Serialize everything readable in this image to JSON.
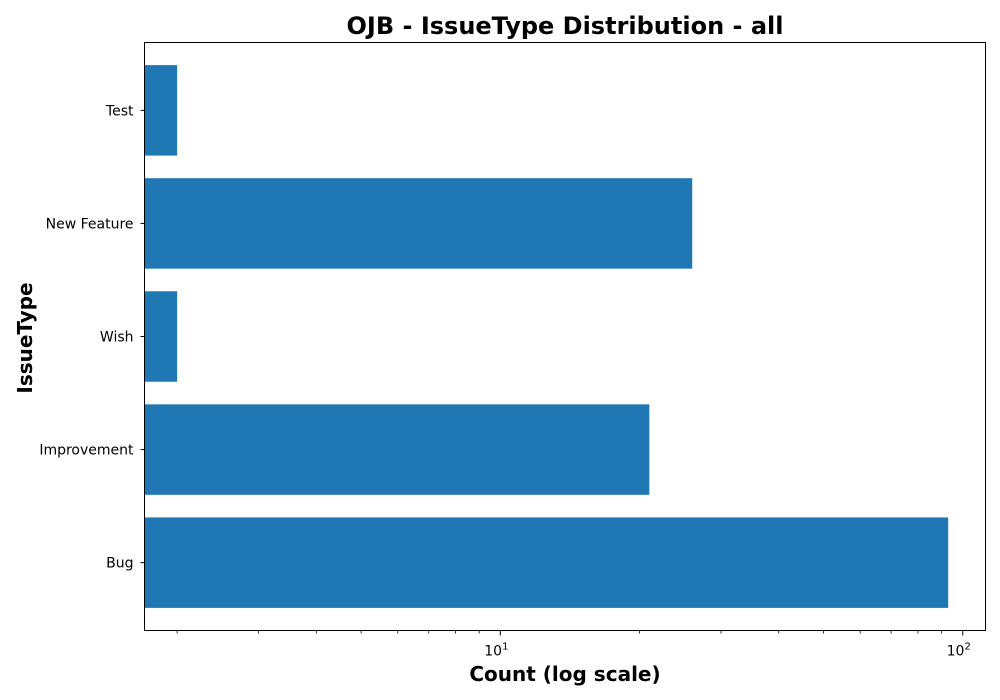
{
  "chart_data": {
    "type": "bar",
    "orientation": "horizontal",
    "title": "OJB - IssueType Distribution - all",
    "xlabel": "Count (log scale)",
    "ylabel": "IssueType",
    "x_scale": "log",
    "xlim": [
      1.7,
      112
    ],
    "categories": [
      "Bug",
      "Improvement",
      "Wish",
      "New Feature",
      "Test"
    ],
    "values": [
      93,
      21,
      2,
      26,
      2
    ],
    "x_major_ticks": [
      {
        "value": 10,
        "base": "10",
        "exp": "1"
      },
      {
        "value": 100,
        "base": "10",
        "exp": "2"
      }
    ],
    "grid": false,
    "color": "#1f77b4"
  }
}
